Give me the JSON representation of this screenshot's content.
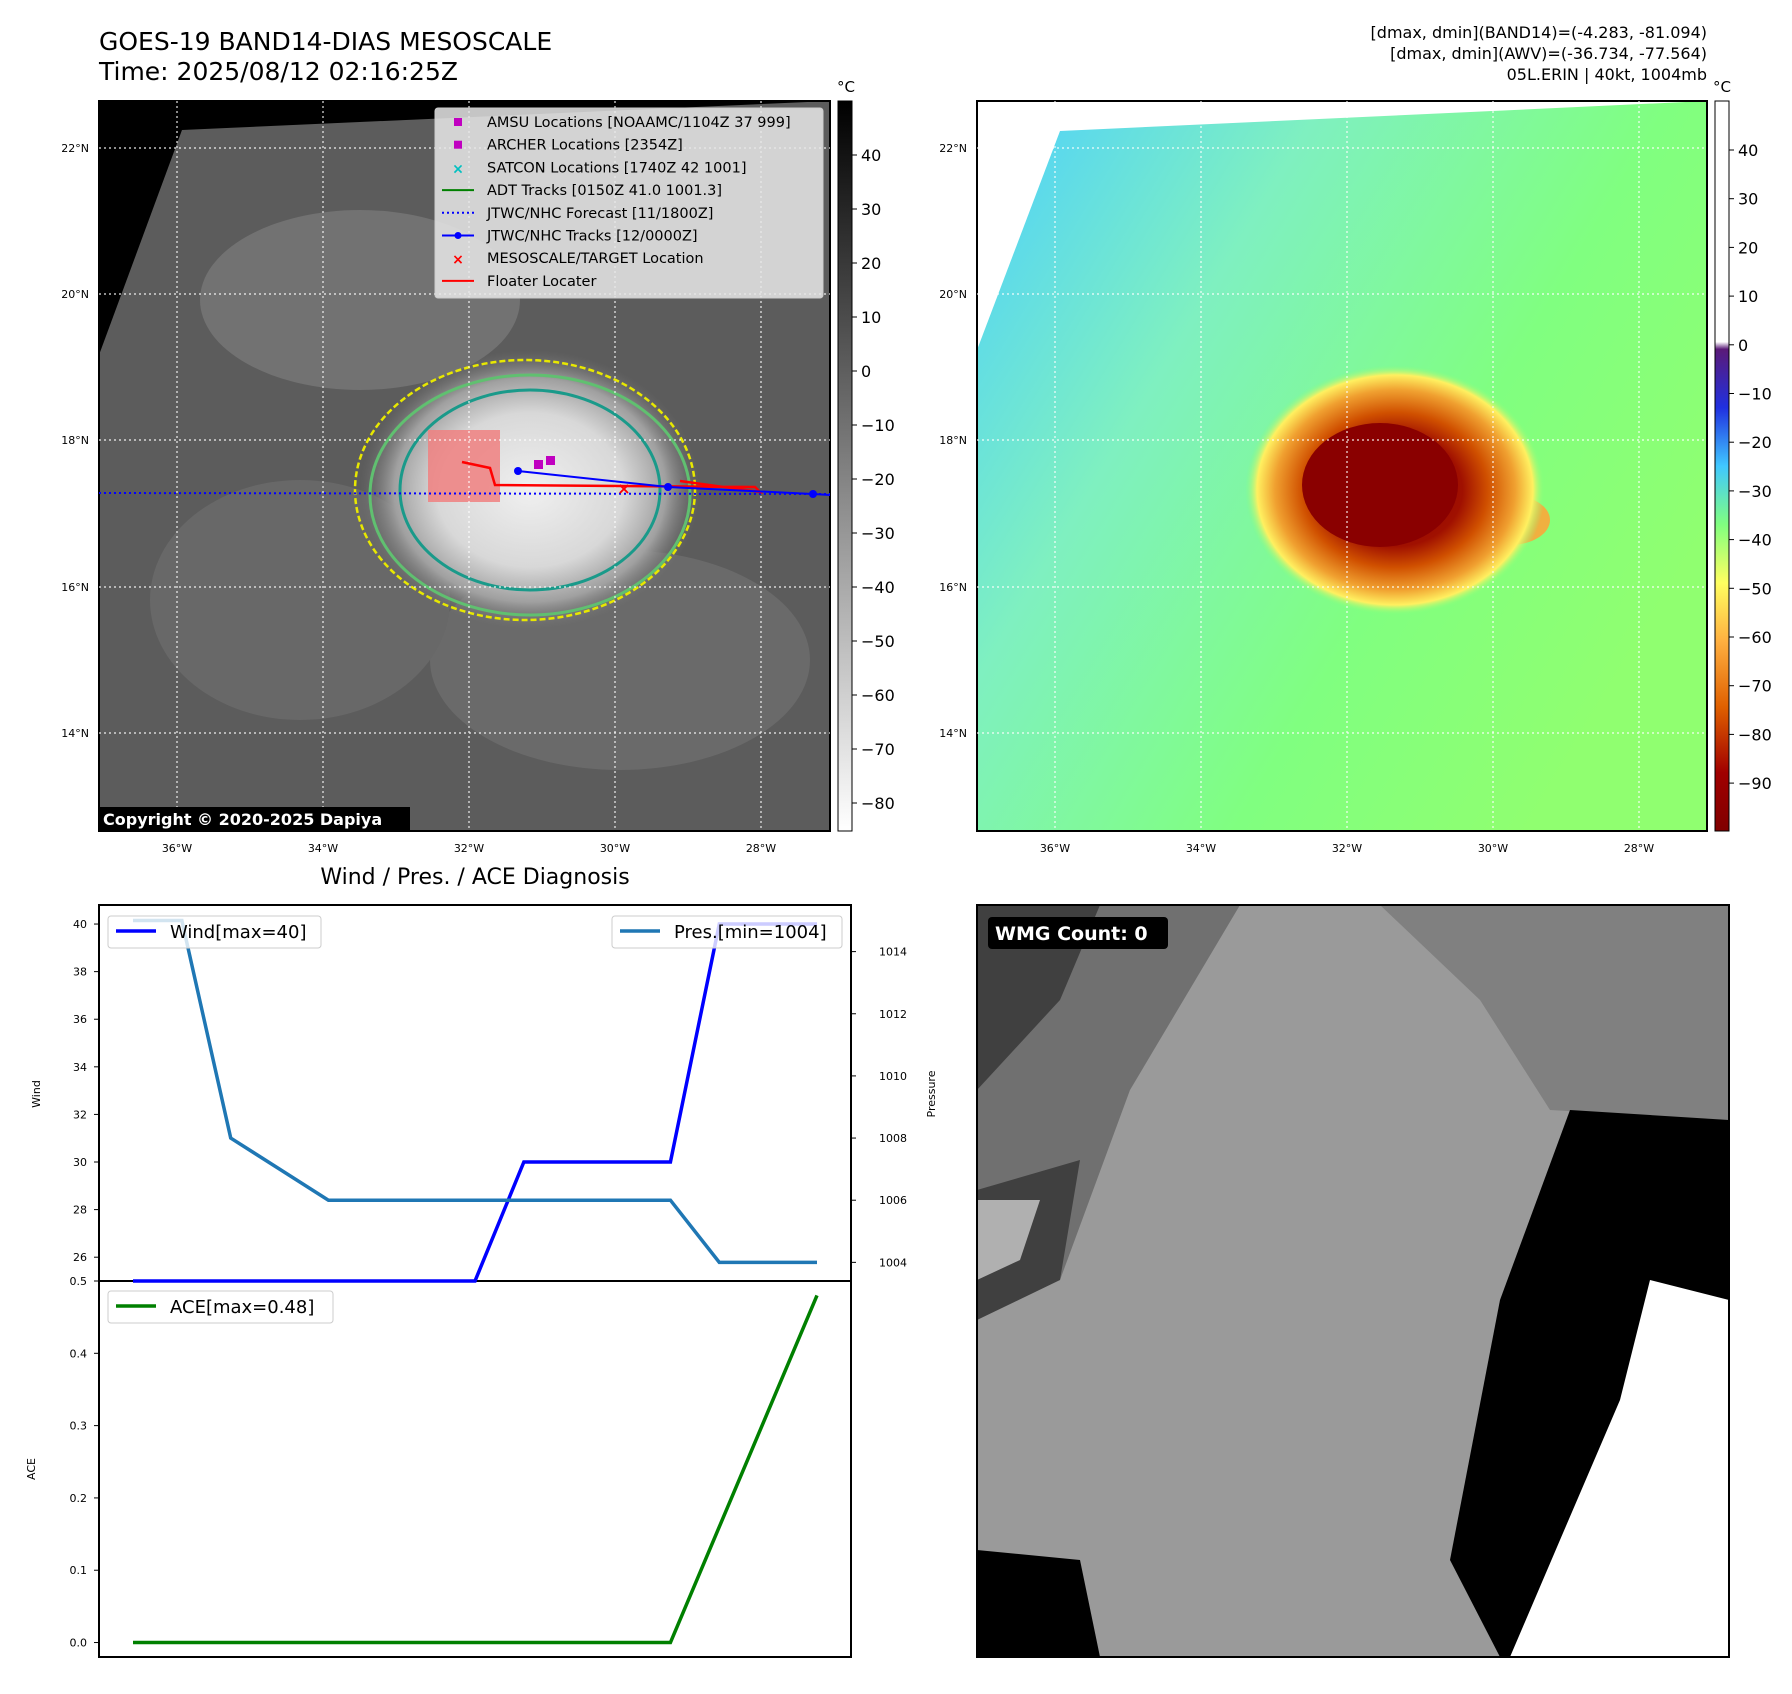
{
  "header": {
    "title": "GOES-19 BAND14-DIAS MESOSCALE",
    "time": "Time: 2025/08/12 02:16:25Z",
    "stats_band14": "[dmax, dmin](BAND14)=(-4.283, -81.094)",
    "stats_awv": "[dmax, dmin](AWV)=(-36.734, -77.564)",
    "storm": "05L.ERIN | 40kt, 1004mb"
  },
  "map_axes": {
    "lat_labels": [
      "22°N",
      "20°N",
      "18°N",
      "16°N",
      "14°N"
    ],
    "lon_labels": [
      "36°W",
      "34°W",
      "32°W",
      "30°W",
      "28°W"
    ]
  },
  "colorbar_ir": {
    "unit": "°C",
    "ticks": [
      "40",
      "30",
      "20",
      "10",
      "0",
      "−10",
      "−20",
      "−30",
      "−40",
      "−50",
      "−60",
      "−70",
      "−80"
    ]
  },
  "colorbar_awv": {
    "unit": "°C",
    "ticks": [
      "40",
      "30",
      "20",
      "10",
      "0",
      "−10",
      "−20",
      "−30",
      "−40",
      "−50",
      "−60",
      "−70",
      "−80",
      "−90"
    ]
  },
  "legend": {
    "items": [
      {
        "label": "AMSU Locations [NOAAMC/1104Z 37 999]",
        "color": "#c000c0",
        "marker": "square"
      },
      {
        "label": "ARCHER Locations [2354Z]",
        "color": "#c000c0",
        "marker": "square"
      },
      {
        "label": "SATCON Locations [1740Z 42 1001]",
        "color": "#00c0c0",
        "marker": "x"
      },
      {
        "label": "ADT Tracks [0150Z 41.0 1001.3]",
        "color": "#008000",
        "marker": "line"
      },
      {
        "label": "JTWC/NHC Forecast [11/1800Z]",
        "color": "#0000ff",
        "marker": "dotted"
      },
      {
        "label": "JTWC/NHC Tracks [12/0000Z]",
        "color": "#0000ff",
        "marker": "line-dot"
      },
      {
        "label": "MESOSCALE/TARGET Location",
        "color": "#ff0000",
        "marker": "x"
      },
      {
        "label": "Floater Locater",
        "color": "#ff0000",
        "marker": "line"
      }
    ]
  },
  "copyright": "Copyright © 2020-2025 Dapiya",
  "wmg": {
    "label": "WMG Count: 0"
  },
  "chart_data": [
    {
      "type": "line",
      "title": "Wind / Pres. / ACE Diagnosis",
      "x": [
        0,
        1,
        2,
        3,
        4,
        5,
        6,
        7,
        8,
        9,
        10,
        11,
        12,
        13,
        14
      ],
      "ylabel": "Wind",
      "y2label": "Pressure",
      "ylim": [
        25,
        40.8
      ],
      "y2lim": [
        1003.4,
        1015.5
      ],
      "yticks": [
        26,
        28,
        30,
        32,
        34,
        36,
        38,
        40
      ],
      "y2ticks": [
        1004,
        1006,
        1008,
        1010,
        1012,
        1014
      ],
      "series": [
        {
          "name": "Wind[max=40]",
          "axis": "left",
          "color": "#0000ff",
          "values": [
            25,
            25,
            25,
            25,
            25,
            25,
            25,
            25,
            30,
            30,
            30,
            30,
            40,
            40,
            40
          ]
        },
        {
          "name": "Pres.[min=1004]",
          "axis": "right",
          "color": "#1f77b4",
          "values": [
            1015,
            1015,
            1008,
            1007,
            1006,
            1006,
            1006,
            1006,
            1006,
            1006,
            1006,
            1006,
            1004,
            1004,
            1004
          ]
        }
      ],
      "legend": [
        "top-left",
        "top-right"
      ]
    },
    {
      "type": "line",
      "x": [
        0,
        1,
        2,
        3,
        4,
        5,
        6,
        7,
        8,
        9,
        10,
        11,
        12,
        13,
        14
      ],
      "ylabel": "ACE",
      "ylim": [
        -0.02,
        0.5
      ],
      "yticks": [
        "0.0",
        "0.1",
        "0.2",
        "0.3",
        "0.4",
        "0.5"
      ],
      "series": [
        {
          "name": "ACE[max=0.48]",
          "color": "#008000",
          "values": [
            0,
            0,
            0,
            0,
            0,
            0,
            0,
            0,
            0,
            0,
            0,
            0,
            0.16,
            0.32,
            0.48
          ]
        }
      ],
      "legend": "top-left"
    }
  ]
}
